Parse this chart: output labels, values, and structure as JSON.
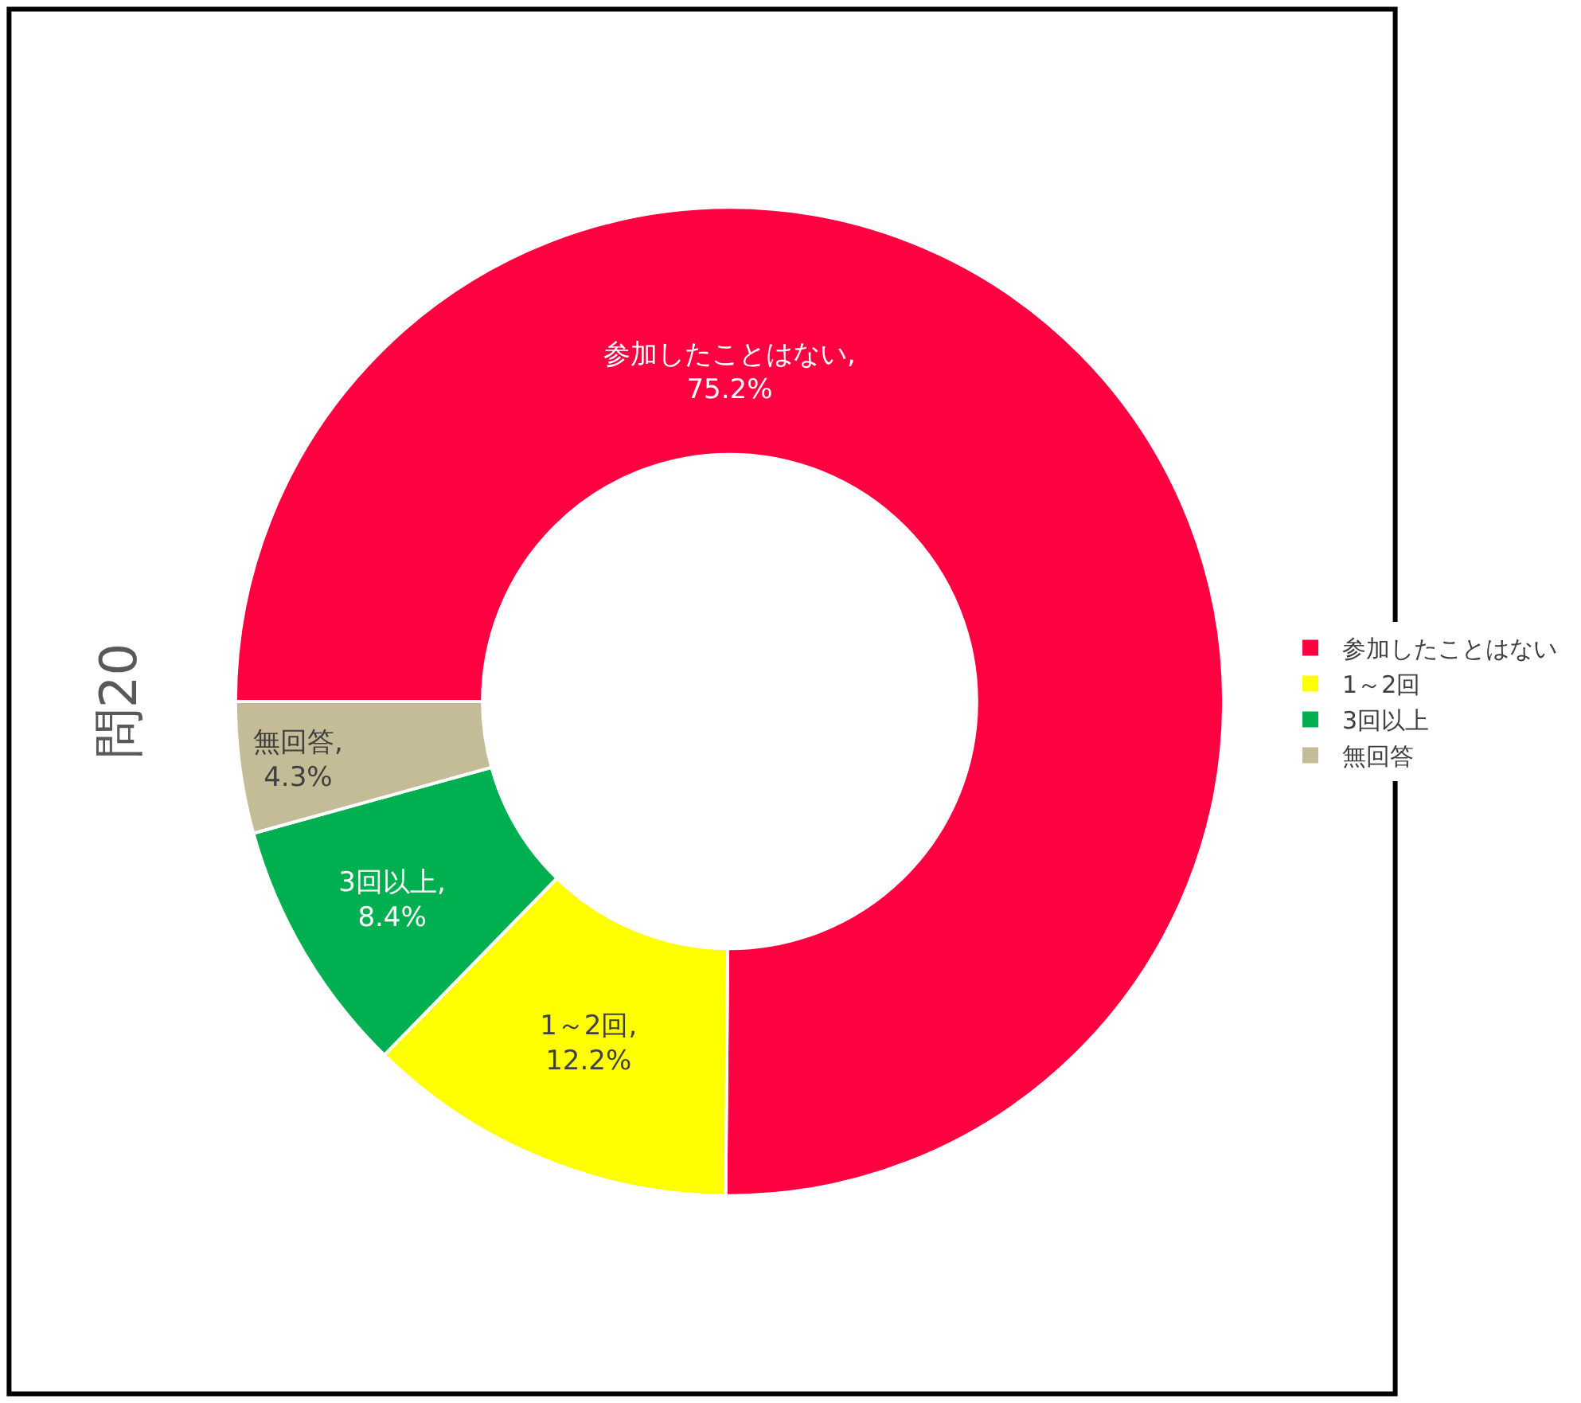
{
  "chart_data": {
    "type": "donut",
    "title": "問20",
    "categories": [
      "参加したことはない",
      "1～2回",
      "3回以上",
      "無回答"
    ],
    "values": [
      75.2,
      12.2,
      8.4,
      4.3
    ],
    "colors": [
      "#ff0040",
      "#ffff00",
      "#00b050",
      "#c4bc96"
    ],
    "value_labels": [
      "参加したことはない, 75.2%",
      "1～2回, 12.2%",
      "3回以上, 8.4%",
      "無回答, 4.3%"
    ],
    "legend": "right"
  }
}
